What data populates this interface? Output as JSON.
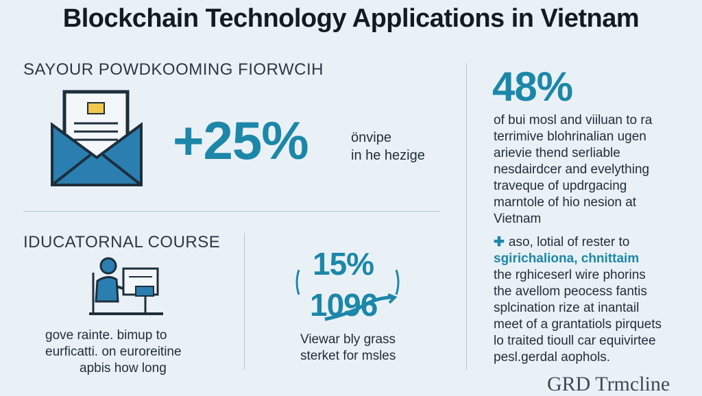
{
  "header": {
    "title": "Blockchain Technology Applications in Vietnam"
  },
  "left_top": {
    "heading": "SAYOUR POWDKOOMING FIORWCIH",
    "stat": "+25%",
    "caption_lines": [
      "önvipe",
      "in he hezige"
    ]
  },
  "left_bottom": {
    "heading": "IDUCATORNAL COURSE",
    "caption_lines": [
      "gove rainte. bimup to",
      "eurficatti. on euroreitine",
      "apbis how long"
    ]
  },
  "middle_bottom": {
    "stat_top": "15%",
    "stat_bottom": "1096",
    "caption_lines": [
      "Viewar bly grass",
      "sterket for msles"
    ]
  },
  "right": {
    "stat": "48%",
    "paragraph_lines": [
      "of bui mosl and viiluan to ra",
      "terrimive blohrinalian ugen",
      "arievie thend serliable",
      "nesdairdcer and evelything",
      "traveque of updrgacing",
      "marntole of hio nesion at",
      "Vietnam"
    ],
    "plus_line": "aso, lotial of rester to",
    "accent_line": "sgirichaliona, chnittaim",
    "more_lines": [
      "the rghiceserl wire phorins",
      "the avellom peocess fantis",
      "splcination rize at inantail",
      "meet of a grantatiols pirquets",
      "lo traited tioull car equivirtee",
      "pesl.gerdal aophols."
    ]
  },
  "footer": {
    "watermark": "GRD Trmcline"
  },
  "colors": {
    "accent": "#1c87a8",
    "background": "#eaf1f6",
    "text": "#1f2c38"
  },
  "icons": [
    "envelope-icon",
    "person-at-computer-icon",
    "rising-arrow-icon",
    "bracket-left-icon",
    "bracket-right-icon"
  ]
}
